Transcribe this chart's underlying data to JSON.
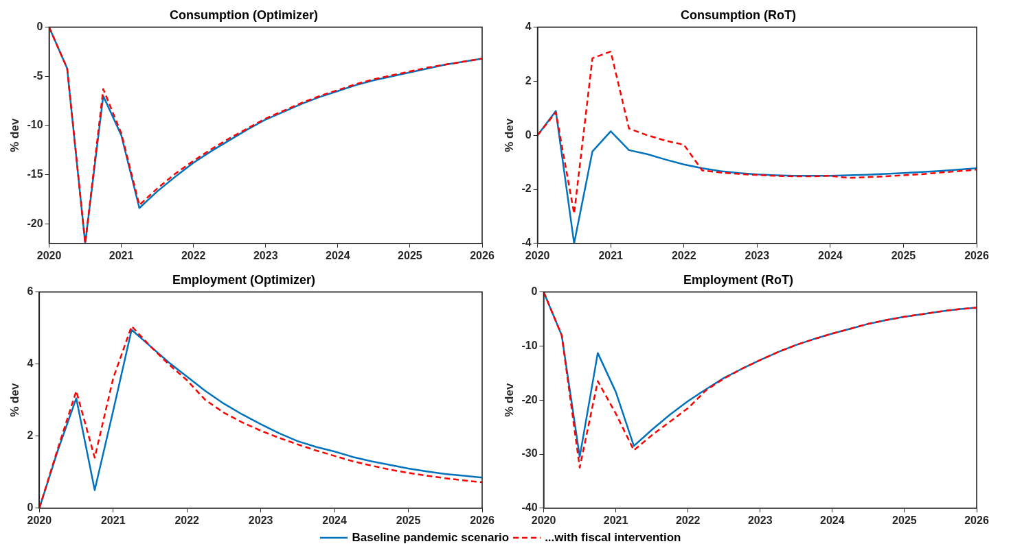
{
  "chart_data": [
    {
      "type": "line",
      "title": "Consumption (Optimizer)",
      "ylabel": "% dev",
      "x": [
        2020,
        2020.25,
        2020.5,
        2020.75,
        2021,
        2021.25,
        2021.5,
        2021.75,
        2022,
        2022.25,
        2022.5,
        2022.75,
        2023,
        2023.25,
        2023.5,
        2023.75,
        2024,
        2024.25,
        2024.5,
        2024.75,
        2025,
        2025.25,
        2025.5,
        2025.75,
        2026
      ],
      "xlim": [
        2020,
        2026
      ],
      "xticks": [
        2020,
        2021,
        2022,
        2023,
        2024,
        2025,
        2026
      ],
      "ylim": [
        -22,
        0
      ],
      "yticks": [
        -20,
        -15,
        -10,
        -5,
        0
      ],
      "grid": false,
      "marker": "none",
      "series": [
        {
          "color": "#0072bd",
          "line_style": "solid",
          "values": [
            0,
            -4.2,
            -22,
            -7,
            -11,
            -18.4,
            -16.7,
            -15.2,
            -13.8,
            -12.6,
            -11.5,
            -10.4,
            -9.4,
            -8.6,
            -7.8,
            -7.1,
            -6.5,
            -5.9,
            -5.4,
            -5.0,
            -4.6,
            -4.2,
            -3.8,
            -3.5,
            -3.2
          ]
        },
        {
          "color": "#ff0000",
          "line_style": "dashed",
          "values": [
            0,
            -4.2,
            -22,
            -6.3,
            -10.8,
            -18.1,
            -16.4,
            -14.9,
            -13.6,
            -12.4,
            -11.3,
            -10.3,
            -9.3,
            -8.5,
            -7.7,
            -7.0,
            -6.4,
            -5.8,
            -5.3,
            -4.9,
            -4.5,
            -4.1,
            -3.8,
            -3.5,
            -3.2
          ]
        }
      ]
    },
    {
      "type": "line",
      "title": "Consumption (RoT)",
      "ylabel": "% dev",
      "x": [
        2020,
        2020.25,
        2020.5,
        2020.75,
        2021,
        2021.25,
        2021.5,
        2021.75,
        2022,
        2022.25,
        2022.5,
        2022.75,
        2023,
        2023.25,
        2023.5,
        2023.75,
        2024,
        2024.25,
        2024.5,
        2024.75,
        2025,
        2025.25,
        2025.5,
        2025.75,
        2026
      ],
      "xlim": [
        2020,
        2026
      ],
      "xticks": [
        2020,
        2021,
        2022,
        2023,
        2024,
        2025,
        2026
      ],
      "ylim": [
        -4,
        4
      ],
      "yticks": [
        -4,
        -2,
        0,
        2,
        4
      ],
      "grid": false,
      "marker": "none",
      "series": [
        {
          "color": "#0072bd",
          "line_style": "solid",
          "values": [
            0,
            0.9,
            -4,
            -0.6,
            0.15,
            -0.55,
            -0.7,
            -0.9,
            -1.08,
            -1.22,
            -1.33,
            -1.4,
            -1.45,
            -1.48,
            -1.5,
            -1.5,
            -1.5,
            -1.48,
            -1.46,
            -1.43,
            -1.4,
            -1.36,
            -1.32,
            -1.27,
            -1.22
          ]
        },
        {
          "color": "#ff0000",
          "line_style": "dashed",
          "values": [
            0,
            0.85,
            -2.9,
            2.85,
            3.1,
            0.25,
            0.0,
            -0.2,
            -0.35,
            -1.3,
            -1.38,
            -1.43,
            -1.47,
            -1.5,
            -1.52,
            -1.52,
            -1.5,
            -1.58,
            -1.55,
            -1.52,
            -1.48,
            -1.44,
            -1.38,
            -1.33,
            -1.27
          ]
        }
      ]
    },
    {
      "type": "line",
      "title": "Employment (Optimizer)",
      "ylabel": "% dev",
      "x": [
        2020,
        2020.25,
        2020.5,
        2020.75,
        2021,
        2021.25,
        2021.5,
        2021.75,
        2022,
        2022.25,
        2022.5,
        2022.75,
        2023,
        2023.25,
        2023.5,
        2023.75,
        2024,
        2024.25,
        2024.5,
        2024.75,
        2025,
        2025.25,
        2025.5,
        2025.75,
        2026
      ],
      "xlim": [
        2020,
        2026
      ],
      "xticks": [
        2020,
        2021,
        2022,
        2023,
        2024,
        2025,
        2026
      ],
      "ylim": [
        0,
        6
      ],
      "yticks": [
        0,
        2,
        4,
        6
      ],
      "grid": false,
      "marker": "none",
      "series": [
        {
          "color": "#0072bd",
          "line_style": "solid",
          "values": [
            0,
            1.6,
            3.05,
            0.5,
            2.7,
            4.95,
            4.5,
            4.05,
            3.65,
            3.25,
            2.9,
            2.6,
            2.33,
            2.08,
            1.86,
            1.7,
            1.57,
            1.42,
            1.3,
            1.2,
            1.1,
            1.02,
            0.95,
            0.9,
            0.85
          ]
        },
        {
          "color": "#ff0000",
          "line_style": "dashed",
          "values": [
            0,
            1.65,
            3.25,
            1.4,
            3.6,
            5.05,
            4.5,
            4.0,
            3.55,
            3.0,
            2.65,
            2.38,
            2.15,
            1.95,
            1.77,
            1.6,
            1.45,
            1.3,
            1.18,
            1.07,
            0.98,
            0.9,
            0.83,
            0.77,
            0.72
          ]
        }
      ]
    },
    {
      "type": "line",
      "title": "Employment (RoT)",
      "ylabel": "% dev",
      "x": [
        2020,
        2020.25,
        2020.5,
        2020.75,
        2021,
        2021.25,
        2021.5,
        2021.75,
        2022,
        2022.25,
        2022.5,
        2022.75,
        2023,
        2023.25,
        2023.5,
        2023.75,
        2024,
        2024.25,
        2024.5,
        2024.75,
        2025,
        2025.25,
        2025.5,
        2025.75,
        2026
      ],
      "xlim": [
        2020,
        2026
      ],
      "xticks": [
        2020,
        2021,
        2022,
        2023,
        2024,
        2025,
        2026
      ],
      "ylim": [
        -40,
        0
      ],
      "yticks": [
        -40,
        -30,
        -20,
        -10,
        0
      ],
      "grid": false,
      "marker": "none",
      "legend": "bottom",
      "series": [
        {
          "name": "Baseline pandemic scenario",
          "color": "#0072bd",
          "line_style": "solid",
          "values": [
            0,
            -8,
            -30.5,
            -11.3,
            -18.5,
            -28.5,
            -25.5,
            -22.7,
            -20.2,
            -18,
            -15.9,
            -14.2,
            -12.6,
            -11.1,
            -9.8,
            -8.7,
            -7.7,
            -6.8,
            -5.9,
            -5.2,
            -4.6,
            -4.1,
            -3.6,
            -3.2,
            -2.9
          ]
        },
        {
          "name": "...with fiscal intervention",
          "color": "#ff0000",
          "line_style": "dashed",
          "values": [
            0,
            -8,
            -32.5,
            -16.5,
            -22.5,
            -29.3,
            -26.5,
            -24,
            -21.5,
            -18.2,
            -16,
            -14.2,
            -12.6,
            -11.1,
            -9.8,
            -8.7,
            -7.7,
            -6.8,
            -5.9,
            -5.2,
            -4.6,
            -4.1,
            -3.6,
            -3.2,
            -2.9
          ]
        }
      ]
    }
  ]
}
